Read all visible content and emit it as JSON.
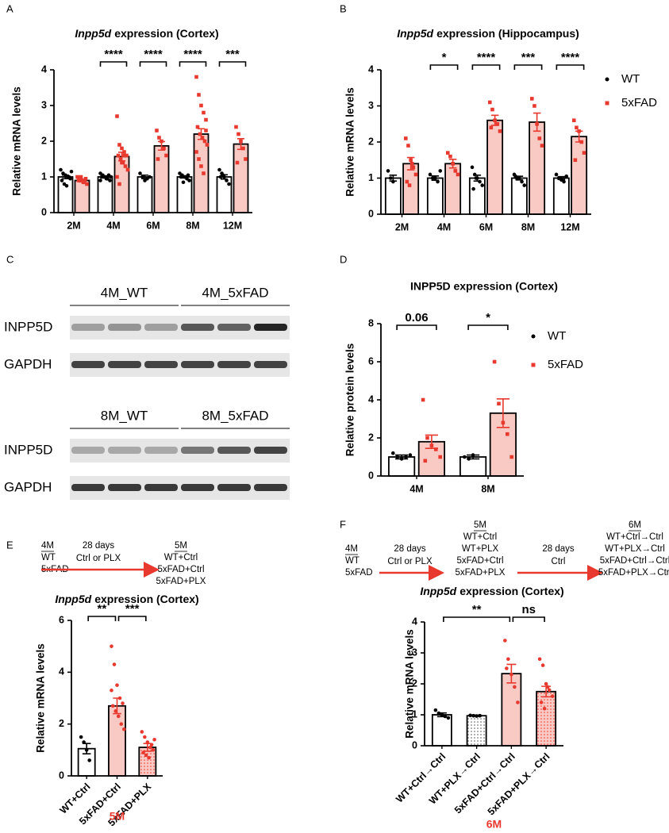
{
  "panels": [
    "A",
    "B",
    "C",
    "D",
    "E",
    "F"
  ],
  "chart_data": [
    {
      "type": "bar",
      "title_gene": "Inpp5d",
      "title": "expression (Cortex)",
      "ylabel": "Relative mRNA levels",
      "categories": [
        "2M",
        "4M",
        "6M",
        "8M",
        "12M"
      ],
      "series": [
        {
          "color": "#000000",
          "fill": "#ffffff",
          "marker": "circle",
          "values": [
            1.0,
            1.0,
            1.0,
            1.0,
            1.0
          ],
          "errors": [
            0.05,
            0.03,
            0.05,
            0.03,
            0.06
          ],
          "points": [
            [
              1.2,
              1.1,
              1.05,
              1.0,
              0.95,
              0.9,
              0.8,
              0.75,
              1.0,
              1.15
            ],
            [
              1.1,
              1.05,
              1.0,
              0.95,
              0.9,
              1.0,
              1.0,
              0.95,
              1.05,
              1.0,
              0.9
            ],
            [
              1.1,
              1.0,
              0.9,
              0.95,
              1.0
            ],
            [
              1.1,
              1.05,
              1.0,
              0.95,
              0.9,
              1.0,
              0.85,
              1.0,
              1.05
            ],
            [
              1.2,
              1.1,
              1.0,
              0.9,
              0.8,
              1.0,
              1.05
            ]
          ]
        },
        {
          "color": "#e8392f",
          "fill": "#f9c9c4",
          "marker": "square",
          "values": [
            0.9,
            1.57,
            1.87,
            2.2,
            1.92
          ],
          "errors": [
            0.04,
            0.12,
            0.12,
            0.15,
            0.15
          ],
          "points": [
            [
              1.0,
              0.95,
              0.9,
              0.85,
              0.8,
              0.9,
              1.0,
              0.85,
              0.95
            ],
            [
              2.7,
              1.9,
              1.8,
              1.7,
              1.6,
              1.6,
              1.5,
              1.4,
              1.3,
              1.2,
              1.0,
              0.8,
              1.4,
              1.6
            ],
            [
              2.3,
              2.1,
              2.0,
              1.8,
              1.6,
              1.5
            ],
            [
              3.8,
              3.3,
              3.0,
              2.8,
              2.6,
              2.4,
              2.2,
              2.1,
              2.0,
              1.9,
              1.7,
              1.5,
              1.3,
              1.1,
              2.3
            ],
            [
              2.4,
              2.2,
              2.0,
              1.8,
              1.5,
              1.4
            ]
          ]
        }
      ],
      "ylim": [
        0,
        4
      ],
      "yticks": [
        0,
        1,
        2,
        3,
        4
      ],
      "significance": [
        null,
        "****",
        "****",
        "****",
        "***"
      ]
    },
    {
      "type": "bar",
      "title_gene": "Inpp5d",
      "title": "expression (Hippocampus)",
      "ylabel": "Relative mRNA levels",
      "categories": [
        "2M",
        "4M",
        "6M",
        "8M",
        "12M"
      ],
      "series": [
        {
          "name": "WT",
          "color": "#000000",
          "fill": "#ffffff",
          "marker": "circle",
          "values": [
            1.0,
            1.0,
            1.0,
            1.0,
            1.0
          ],
          "errors": [
            0.08,
            0.06,
            0.08,
            0.05,
            0.04
          ],
          "points": [
            [
              1.2,
              1.0,
              0.9
            ],
            [
              1.1,
              1.0,
              1.0,
              0.9,
              1.2
            ],
            [
              1.3,
              1.1,
              1.0,
              0.9,
              0.8,
              0.7,
              1.0
            ],
            [
              1.1,
              1.0,
              1.0,
              0.9,
              0.8,
              1.05
            ],
            [
              1.1,
              1.0,
              0.95,
              0.9,
              1.05
            ]
          ]
        },
        {
          "name": "5xFAD",
          "color": "#e8392f",
          "fill": "#f9c9c4",
          "marker": "square",
          "values": [
            1.4,
            1.4,
            2.6,
            2.55,
            2.15
          ],
          "errors": [
            0.17,
            0.12,
            0.14,
            0.25,
            0.15
          ],
          "points": [
            [
              2.1,
              1.9,
              1.5,
              1.3,
              1.1,
              0.9,
              0.8,
              1.4
            ],
            [
              1.7,
              1.6,
              1.4,
              1.2,
              1.1
            ],
            [
              3.1,
              2.9,
              2.6,
              2.5,
              2.3,
              2.4
            ],
            [
              3.2,
              3.0,
              2.5,
              2.1,
              1.9
            ],
            [
              2.6,
              2.4,
              2.3,
              2.0,
              1.7,
              1.5
            ]
          ]
        }
      ],
      "ylim": [
        0,
        4
      ],
      "yticks": [
        0,
        1,
        2,
        3,
        4
      ],
      "significance": [
        null,
        "*",
        "****",
        "***",
        "****"
      ],
      "legend": "right"
    },
    {
      "type": "bar",
      "title": "INPP5D expression (Cortex)",
      "ylabel": "Relative protein levels",
      "categories": [
        "4M",
        "8M"
      ],
      "series": [
        {
          "name": "WT",
          "color": "#000000",
          "fill": "#ffffff",
          "marker": "circle",
          "values": [
            1.0,
            1.0
          ],
          "errors": [
            0.1,
            0.1
          ],
          "points": [
            [
              1.2,
              1.0,
              0.9,
              1.0,
              1.1
            ],
            [
              1.0,
              0.9,
              1.1
            ]
          ]
        },
        {
          "name": "5xFAD",
          "color": "#e8392f",
          "fill": "#f9c9c4",
          "marker": "square",
          "values": [
            1.8,
            3.3
          ],
          "errors": [
            0.35,
            0.75
          ],
          "points": [
            [
              4.0,
              2.0,
              1.6,
              1.4,
              1.0,
              0.8
            ],
            [
              6.0,
              3.8,
              2.8,
              2.2,
              1.0
            ]
          ]
        }
      ],
      "ylim": [
        0,
        8
      ],
      "yticks": [
        0,
        2,
        4,
        6,
        8
      ],
      "significance": [
        "0.06",
        "*"
      ],
      "legend": "right"
    },
    {
      "type": "bar",
      "title_gene": "Inpp5d",
      "title": "expression (Cortex)",
      "ylabel": "Relative mRNA levels",
      "categories": [
        "WT+Ctrl",
        "5xFAD+Ctrl",
        "5xFAD+PLX"
      ],
      "series": [
        {
          "color": [
            "#000000",
            "#e8392f",
            "#e8392f"
          ],
          "fill": [
            "#ffffff",
            "#f9c9c4",
            "#f9c9c4"
          ],
          "patterned": [
            false,
            false,
            true
          ],
          "marker": "circle",
          "values": [
            1.05,
            2.7,
            1.1
          ],
          "errors": [
            0.2,
            0.3,
            0.15
          ],
          "points": [
            [
              1.5,
              1.3,
              1.0,
              0.6
            ],
            [
              5.0,
              4.3,
              3.5,
              3.0,
              2.8,
              2.7,
              2.5,
              2.3,
              2.0,
              1.8,
              3.3
            ],
            [
              1.7,
              1.5,
              1.3,
              1.1,
              1.0,
              0.9,
              0.8,
              0.7,
              1.2,
              1.4
            ]
          ]
        }
      ],
      "ylim": [
        0,
        6
      ],
      "yticks": [
        0,
        2,
        4,
        6
      ],
      "comparisons": [
        {
          "groups": [
            "WT+Ctrl",
            "5xFAD+Ctrl"
          ],
          "label": "**"
        },
        {
          "groups": [
            "5xFAD+Ctrl",
            "5xFAD+PLX"
          ],
          "label": "***"
        }
      ],
      "xlabel": "5M",
      "xlabel_color": "#e8392f"
    },
    {
      "type": "bar",
      "title_gene": "Inpp5d",
      "title": "expression (Cortex)",
      "ylabel": "Relative mRNA levels",
      "categories": [
        "WT+Ctrl→Ctrl",
        "WT+PLX→Ctrl",
        "5xFAD+Ctrl→Ctrl",
        "5xFAD+PLX→Ctrl"
      ],
      "series": [
        {
          "color": [
            "#000000",
            "#000000",
            "#e8392f",
            "#e8392f"
          ],
          "fill": [
            "#ffffff",
            "#ffffff",
            "#f9c9c4",
            "#f9c9c4"
          ],
          "patterned": [
            false,
            true,
            false,
            true
          ],
          "marker": "circle",
          "values": [
            1.0,
            0.97,
            2.33,
            1.75
          ],
          "errors": [
            0.06,
            0.02,
            0.3,
            0.17
          ],
          "points": [
            [
              1.15,
              1.05,
              1.0,
              0.95,
              0.9
            ],
            [
              0.98,
              0.97,
              0.96,
              0.97
            ],
            [
              3.4,
              2.8,
              2.3,
              1.9,
              1.4,
              2.5
            ],
            [
              2.8,
              2.6,
              2.0,
              1.8,
              1.6,
              1.4,
              1.2,
              1.9
            ]
          ]
        }
      ],
      "ylim": [
        0,
        4
      ],
      "yticks": [
        0,
        1,
        2,
        3,
        4
      ],
      "comparisons": [
        {
          "groups": [
            "WT+Ctrl→Ctrl",
            "5xFAD+Ctrl→Ctrl"
          ],
          "label": "**"
        },
        {
          "groups": [
            "5xFAD+Ctrl→Ctrl",
            "5xFAD+PLX→Ctrl"
          ],
          "label": "ns"
        }
      ],
      "xlabel": "6M",
      "xlabel_color": "#e8392f"
    }
  ],
  "blot": {
    "blocks": [
      {
        "groups": [
          "4M_WT",
          "4M_5xFAD"
        ],
        "rows": [
          "INPP5D",
          "GAPDH"
        ]
      },
      {
        "groups": [
          "8M_WT",
          "8M_5xFAD"
        ],
        "rows": [
          "INPP5D",
          "GAPDH"
        ]
      }
    ]
  },
  "schemes": [
    {
      "start_time": "4M",
      "start_groups": [
        "WT",
        "5xFAD"
      ],
      "steps": [
        {
          "duration": "28 days",
          "treatment": "Ctrl or PLX",
          "time": "5M",
          "groups": [
            "WT+Ctrl",
            "5xFAD+Ctrl",
            "5xFAD+PLX"
          ]
        }
      ]
    },
    {
      "start_time": "4M",
      "start_groups": [
        "WT",
        "5xFAD"
      ],
      "steps": [
        {
          "duration": "28 days",
          "treatment": "Ctrl or PLX",
          "time": "5M",
          "groups": [
            "WT+Ctrl",
            "WT+PLX",
            "5xFAD+Ctrl",
            "5xFAD+PLX"
          ]
        },
        {
          "duration": "28 days",
          "treatment": "Ctrl",
          "time": "6M",
          "groups": [
            "WT+Ctrl→Ctrl",
            "WT+PLX→Ctrl",
            "5xFAD+Ctrl→Ctrl",
            "5xFAD+PLX→Ctrl"
          ]
        }
      ]
    }
  ]
}
